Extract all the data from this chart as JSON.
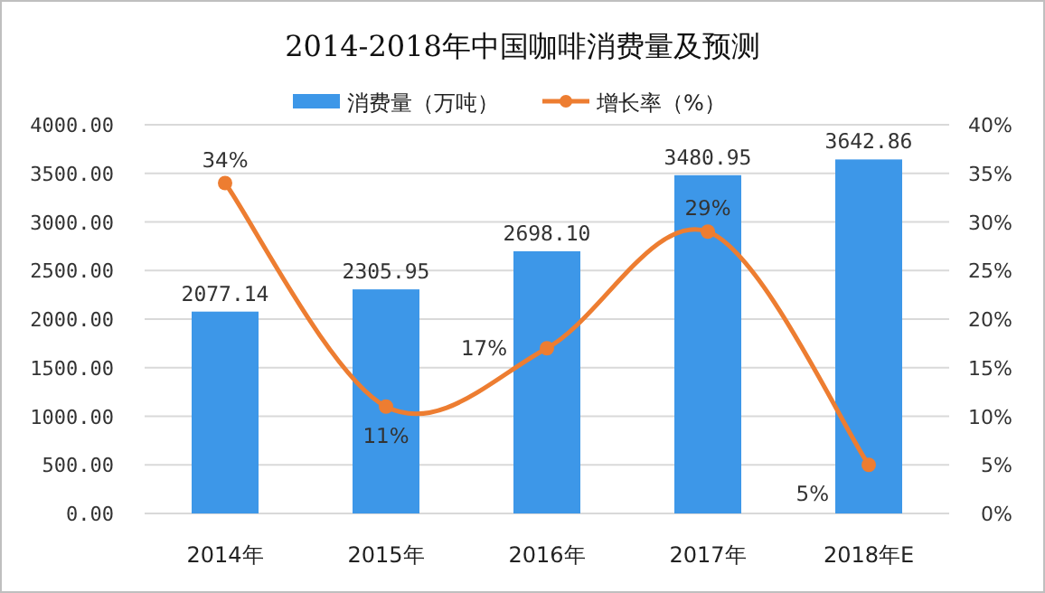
{
  "chart_data": {
    "type": "bar",
    "title": "2014-2018年中国咖啡消费量及预测",
    "categories": [
      "2014年",
      "2015年",
      "2016年",
      "2017年",
      "2018年E"
    ],
    "series": [
      {
        "name": "消费量（万吨）",
        "color": "#3d97e8",
        "values": [
          2077.14,
          2305.95,
          2698.1,
          3480.95,
          3642.86
        ],
        "value_labels": [
          "2077.14",
          "2305.95",
          "2698.10",
          "3480.95",
          "3642.86"
        ]
      },
      {
        "name": "增长率（%）",
        "type": "line",
        "axis": "y2",
        "color": "#ed7d31",
        "marker": "circle",
        "values": [
          34,
          11,
          17,
          29,
          5
        ],
        "value_labels": [
          "34%",
          "11%",
          "17%",
          "29%",
          "5%"
        ]
      }
    ],
    "ylim": [
      0,
      4000
    ],
    "yticks": [
      {
        "value": 0,
        "label": "0.00"
      },
      {
        "value": 500,
        "label": "500.00"
      },
      {
        "value": 1000,
        "label": "1000.00"
      },
      {
        "value": 1500,
        "label": "1500.00"
      },
      {
        "value": 2000,
        "label": "2000.00"
      },
      {
        "value": 2500,
        "label": "2500.00"
      },
      {
        "value": 3000,
        "label": "3000.00"
      },
      {
        "value": 3500,
        "label": "3500.00"
      },
      {
        "value": 4000,
        "label": "4000.00"
      }
    ],
    "y2lim": [
      0,
      40
    ],
    "y2ticks": [
      {
        "value": 0,
        "label": "0%"
      },
      {
        "value": 5,
        "label": "5%"
      },
      {
        "value": 10,
        "label": "10%"
      },
      {
        "value": 15,
        "label": "15%"
      },
      {
        "value": 20,
        "label": "20%"
      },
      {
        "value": 25,
        "label": "25%"
      },
      {
        "value": 30,
        "label": "30%"
      },
      {
        "value": 35,
        "label": "35%"
      },
      {
        "value": 40,
        "label": "40%"
      }
    ],
    "grid": "y",
    "legend": "top"
  }
}
